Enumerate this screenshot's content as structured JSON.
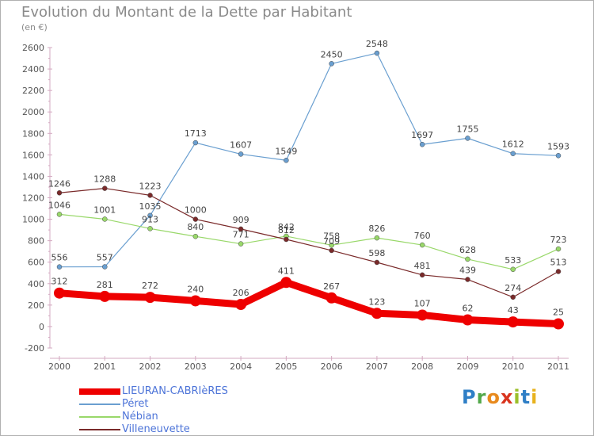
{
  "title": "Evolution du Montant de la Dette par Habitant",
  "subtitle": "(en €)",
  "logo_text": "Proxiti",
  "chart_data": {
    "type": "line",
    "title": "Evolution du Montant de la Dette par Habitant",
    "subtitle": "(en €)",
    "x": [
      "2000",
      "2001",
      "2002",
      "2003",
      "2004",
      "2005",
      "2006",
      "2007",
      "2008",
      "2009",
      "2010",
      "2011"
    ],
    "ylim": [
      -200,
      2600
    ],
    "yticks": [
      -200,
      0,
      200,
      400,
      600,
      800,
      1000,
      1200,
      1400,
      1600,
      1800,
      2000,
      2200,
      2400,
      2600
    ],
    "grid": false,
    "legend_position": "bottom-left",
    "series": [
      {
        "name": "LIEURAN-CABRIèRES",
        "color": "#ee0000",
        "values": [
          312,
          281,
          272,
          240,
          206,
          411,
          267,
          123,
          107,
          62,
          43,
          25
        ]
      },
      {
        "name": "Péret",
        "color": "#6a9fd0",
        "values": [
          556,
          557,
          1035,
          1713,
          1607,
          1549,
          2450,
          2548,
          1697,
          1755,
          1612,
          1593
        ]
      },
      {
        "name": "Nébian",
        "color": "#99d86a",
        "values": [
          1046,
          1001,
          913,
          840,
          771,
          842,
          758,
          826,
          760,
          628,
          533,
          723
        ]
      },
      {
        "name": "Villeneuvette",
        "color": "#7a2a2a",
        "values": [
          1246,
          1288,
          1223,
          1000,
          909,
          812,
          709,
          598,
          481,
          439,
          274,
          513
        ]
      }
    ]
  }
}
